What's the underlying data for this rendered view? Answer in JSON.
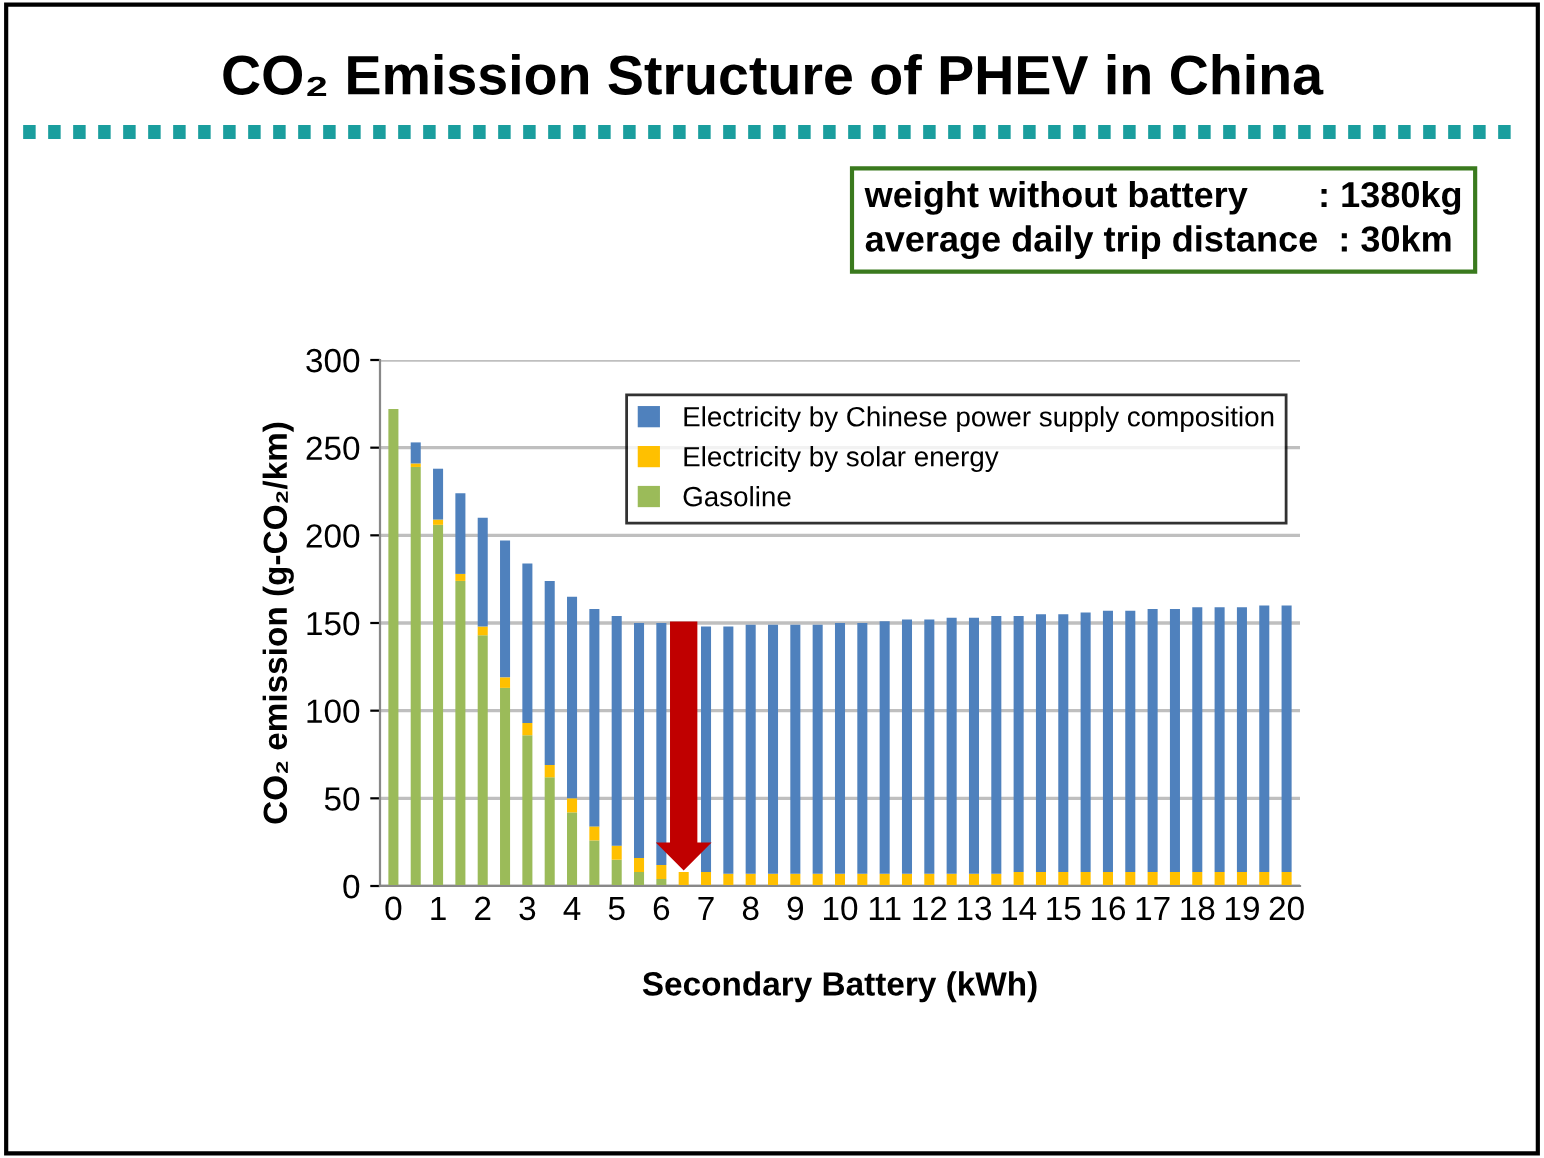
{
  "chart_data": {
    "type": "bar",
    "stacked": true,
    "title": "CO₂ Emission Structure of PHEV in China",
    "annotations": [
      "weight without battery       : 1380kg",
      "average daily trip distance  : 30km"
    ],
    "xlabel": "Secondary Battery (kWh)",
    "ylabel": "CO₂ emission (g-CO₂/km)",
    "categories": [
      "0",
      null,
      "1",
      null,
      "2",
      null,
      "3",
      null,
      "4",
      null,
      "5",
      null,
      "6",
      null,
      "7",
      null,
      "8",
      null,
      "9",
      null,
      "10",
      null,
      "11",
      null,
      "12",
      null,
      "13",
      null,
      "14",
      null,
      "15",
      null,
      "16",
      null,
      "17",
      null,
      "18",
      null,
      "19",
      null,
      "20"
    ],
    "series": [
      {
        "name": "Gasoline",
        "color": "#9bbb59",
        "values": [
          272,
          239,
          206,
          174,
          143,
          113,
          86,
          62,
          42,
          26,
          15,
          8,
          4,
          null,
          0,
          0,
          0,
          0,
          0,
          0,
          0,
          0,
          0,
          0,
          0,
          0,
          0,
          0,
          0,
          0,
          0,
          0,
          0,
          0,
          0,
          0,
          0,
          0,
          0,
          0,
          0
        ]
      },
      {
        "name": "Electricity by solar energy",
        "color": "#ffc000",
        "values": [
          null,
          2,
          3,
          4,
          5,
          6,
          7,
          7,
          8,
          8,
          8,
          8,
          8,
          8,
          8,
          7,
          7,
          7,
          7,
          7,
          7,
          7,
          7,
          7,
          7,
          7,
          7,
          7,
          8,
          8,
          8,
          8,
          8,
          8,
          8,
          8,
          8,
          8,
          8,
          8,
          8
        ]
      },
      {
        "name": "Electricity by Chinese power supply composition",
        "color": "#4f81bd",
        "values": [
          0,
          12,
          29,
          46,
          62,
          78,
          91,
          105,
          115,
          124,
          131,
          134,
          138,
          null,
          140,
          141,
          142,
          142,
          142,
          142,
          143,
          143,
          144,
          145,
          145,
          146,
          146,
          147,
          146,
          147,
          147,
          148,
          149,
          149,
          150,
          150,
          151,
          151,
          151,
          152,
          152
        ]
      }
    ],
    "ylim": [
      0,
      300
    ],
    "yticks": [
      0,
      50,
      100,
      150,
      200,
      250,
      300
    ],
    "grid": "y",
    "legend": "top right"
  }
}
